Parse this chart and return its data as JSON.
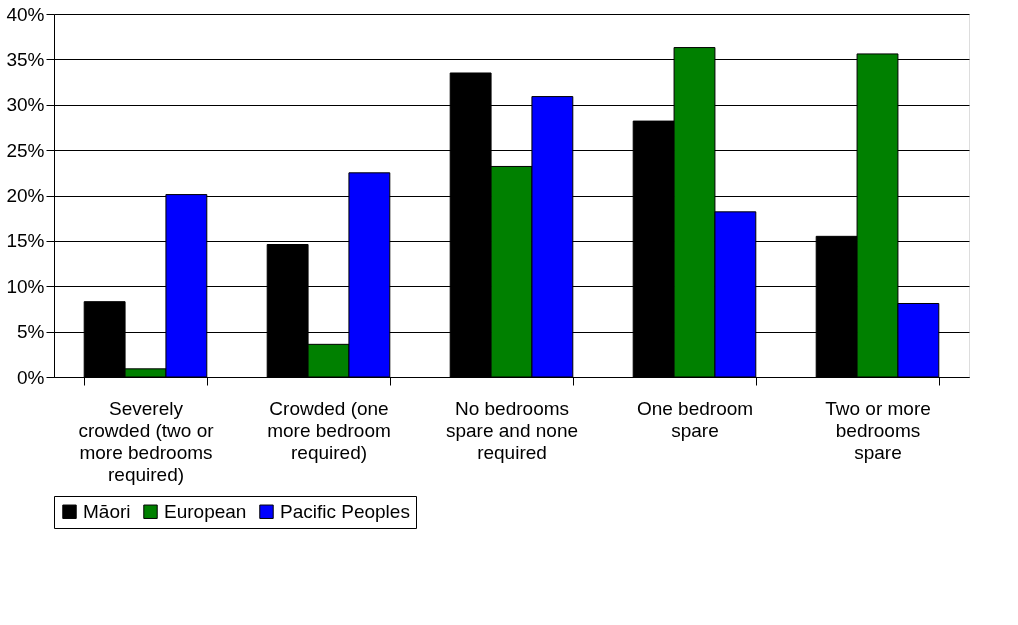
{
  "chart_data": {
    "type": "bar",
    "categories": [
      "Severely\ncrowded (two or\nmore bedrooms\nrequired)",
      "Crowded (one\nmore bedroom\nrequired)",
      "No bedrooms\nspare and none\nrequired",
      "One bedroom\nspare",
      "Two or more\nbedrooms\nspare"
    ],
    "series": [
      {
        "name": "Māori",
        "color": "#000000",
        "values": [
          8.3,
          14.6,
          33.5,
          28.2,
          15.5
        ]
      },
      {
        "name": "European",
        "color": "#008000",
        "values": [
          0.9,
          3.6,
          23.2,
          36.3,
          35.6
        ]
      },
      {
        "name": "Pacific Peoples",
        "color": "#0000ff",
        "values": [
          20.1,
          22.5,
          30.9,
          18.2,
          8.1
        ]
      }
    ],
    "ylim": [
      0,
      40
    ],
    "yticks": [
      {
        "value": 0,
        "label": "0%"
      },
      {
        "value": 5,
        "label": "5%"
      },
      {
        "value": 10,
        "label": "10%"
      },
      {
        "value": 15,
        "label": "15%"
      },
      {
        "value": 20,
        "label": "20%"
      },
      {
        "value": 25,
        "label": "25%"
      },
      {
        "value": 30,
        "label": "30%"
      },
      {
        "value": 35,
        "label": "35%"
      },
      {
        "value": 40,
        "label": "40%"
      }
    ],
    "grid": "y",
    "legend": "bottom"
  }
}
